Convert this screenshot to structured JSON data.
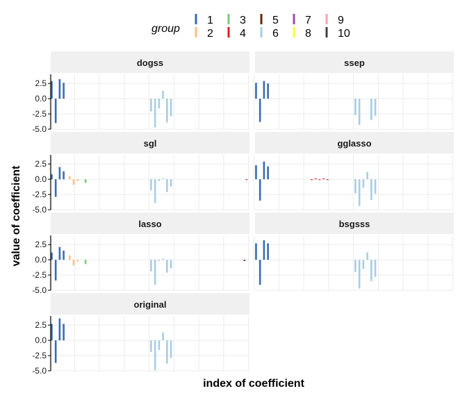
{
  "chart_data": {
    "type": "bar",
    "xlabel": "index of coefficient",
    "ylabel": "value of coefficient",
    "ylim": [
      -5,
      4
    ],
    "y_ticks": [
      2.5,
      0.0,
      -2.5,
      -5.0
    ],
    "y_tick_labels": [
      "2.5",
      "0.0",
      "-2.5",
      "-5.0"
    ],
    "x_range": [
      0.5,
      100.5
    ],
    "grid": true,
    "legend": {
      "title": "group",
      "placement": "top",
      "entries": [
        {
          "label": "1",
          "color": "#386CB0"
        },
        {
          "label": "2",
          "color": "#FDC086"
        },
        {
          "label": "3",
          "color": "#7FC97F"
        },
        {
          "label": "4",
          "color": "#E41A1C"
        },
        {
          "label": "5",
          "color": "#662506"
        },
        {
          "label": "6",
          "color": "#A6CEE3"
        },
        {
          "label": "7",
          "color": "#984EA3"
        },
        {
          "label": "8",
          "color": "#FFFF33"
        },
        {
          "label": "9",
          "color": "#F4A5A8"
        },
        {
          "label": "10",
          "color": "#404040"
        }
      ]
    },
    "panels": [
      {
        "name": "dogss",
        "bars": [
          {
            "x": 1,
            "y": 2.9,
            "group": "1"
          },
          {
            "x": 3,
            "y": -4.0,
            "group": "1"
          },
          {
            "x": 5,
            "y": 3.2,
            "group": "1"
          },
          {
            "x": 7,
            "y": 2.6,
            "group": "1"
          },
          {
            "x": 51,
            "y": -2.1,
            "group": "6"
          },
          {
            "x": 53,
            "y": -4.7,
            "group": "6"
          },
          {
            "x": 55,
            "y": -1.6,
            "group": "6"
          },
          {
            "x": 57,
            "y": 1.3,
            "group": "6"
          },
          {
            "x": 59,
            "y": -3.9,
            "group": "6"
          },
          {
            "x": 61,
            "y": -2.9,
            "group": "6"
          }
        ]
      },
      {
        "name": "ssep",
        "bars": [
          {
            "x": 1,
            "y": 2.6,
            "group": "1"
          },
          {
            "x": 3,
            "y": -3.8,
            "group": "1"
          },
          {
            "x": 5,
            "y": 2.9,
            "group": "1"
          },
          {
            "x": 7,
            "y": 2.5,
            "group": "1"
          },
          {
            "x": 51,
            "y": -2.7,
            "group": "6"
          },
          {
            "x": 53,
            "y": -4.3,
            "group": "6"
          },
          {
            "x": 59,
            "y": -3.5,
            "group": "6"
          },
          {
            "x": 61,
            "y": -2.8,
            "group": "6"
          }
        ]
      },
      {
        "name": "sgl",
        "bars": [
          {
            "x": 1,
            "y": 0.8,
            "group": "1"
          },
          {
            "x": 3,
            "y": -2.9,
            "group": "1"
          },
          {
            "x": 5,
            "y": 2.0,
            "group": "1"
          },
          {
            "x": 7,
            "y": 1.3,
            "group": "1"
          },
          {
            "x": 10,
            "y": 0.5,
            "group": "2"
          },
          {
            "x": 12,
            "y": -0.9,
            "group": "2"
          },
          {
            "x": 14,
            "y": -0.3,
            "group": "2"
          },
          {
            "x": 18,
            "y": -0.6,
            "group": "3"
          },
          {
            "x": 51,
            "y": -1.8,
            "group": "6"
          },
          {
            "x": 53,
            "y": -3.9,
            "group": "6"
          },
          {
            "x": 55,
            "y": -0.3,
            "group": "6"
          },
          {
            "x": 57,
            "y": 0.1,
            "group": "6"
          },
          {
            "x": 59,
            "y": -2.1,
            "group": "6"
          },
          {
            "x": 61,
            "y": -1.2,
            "group": "6"
          },
          {
            "x": 99,
            "y": -0.1,
            "group": "4"
          }
        ]
      },
      {
        "name": "gglasso",
        "bars": [
          {
            "x": 1,
            "y": 2.3,
            "group": "1"
          },
          {
            "x": 3,
            "y": -3.5,
            "group": "1"
          },
          {
            "x": 5,
            "y": 2.9,
            "group": "1"
          },
          {
            "x": 7,
            "y": 2.1,
            "group": "1"
          },
          {
            "x": 29,
            "y": -0.05,
            "group": "4"
          },
          {
            "x": 31,
            "y": 0.05,
            "group": "4"
          },
          {
            "x": 33,
            "y": -0.05,
            "group": "4"
          },
          {
            "x": 35,
            "y": 0.05,
            "group": "4"
          },
          {
            "x": 37,
            "y": -0.05,
            "group": "4"
          },
          {
            "x": 51,
            "y": -2.3,
            "group": "6"
          },
          {
            "x": 53,
            "y": -4.4,
            "group": "6"
          },
          {
            "x": 55,
            "y": -1.4,
            "group": "6"
          },
          {
            "x": 57,
            "y": 1.2,
            "group": "6"
          },
          {
            "x": 59,
            "y": -3.4,
            "group": "6"
          },
          {
            "x": 61,
            "y": -2.4,
            "group": "6"
          }
        ]
      },
      {
        "name": "lasso",
        "bars": [
          {
            "x": 1,
            "y": 1.2,
            "group": "1"
          },
          {
            "x": 3,
            "y": -3.4,
            "group": "1"
          },
          {
            "x": 5,
            "y": 2.1,
            "group": "1"
          },
          {
            "x": 7,
            "y": 1.5,
            "group": "1"
          },
          {
            "x": 10,
            "y": 0.7,
            "group": "2"
          },
          {
            "x": 12,
            "y": -0.9,
            "group": "2"
          },
          {
            "x": 14,
            "y": -0.3,
            "group": "2"
          },
          {
            "x": 18,
            "y": -0.7,
            "group": "3"
          },
          {
            "x": 51,
            "y": -1.9,
            "group": "6"
          },
          {
            "x": 53,
            "y": -4.1,
            "group": "6"
          },
          {
            "x": 55,
            "y": -0.2,
            "group": "6"
          },
          {
            "x": 57,
            "y": 0.2,
            "group": "6"
          },
          {
            "x": 59,
            "y": -2.1,
            "group": "6"
          },
          {
            "x": 61,
            "y": -1.4,
            "group": "6"
          },
          {
            "x": 98,
            "y": -0.2,
            "group": "10"
          }
        ]
      },
      {
        "name": "bsgsss",
        "bars": [
          {
            "x": 1,
            "y": 2.7,
            "group": "1"
          },
          {
            "x": 3,
            "y": -4.1,
            "group": "1"
          },
          {
            "x": 5,
            "y": 3.2,
            "group": "1"
          },
          {
            "x": 7,
            "y": 2.7,
            "group": "1"
          },
          {
            "x": 51,
            "y": -2.0,
            "group": "6"
          },
          {
            "x": 53,
            "y": -4.7,
            "group": "6"
          },
          {
            "x": 55,
            "y": -1.5,
            "group": "6"
          },
          {
            "x": 57,
            "y": 1.2,
            "group": "6"
          },
          {
            "x": 59,
            "y": -3.5,
            "group": "6"
          },
          {
            "x": 61,
            "y": -2.8,
            "group": "6"
          }
        ]
      },
      {
        "name": "original",
        "bars": [
          {
            "x": 1,
            "y": 2.7,
            "group": "1"
          },
          {
            "x": 3,
            "y": -3.7,
            "group": "1"
          },
          {
            "x": 5,
            "y": 3.6,
            "group": "1"
          },
          {
            "x": 7,
            "y": 2.7,
            "group": "1"
          },
          {
            "x": 51,
            "y": -1.9,
            "group": "6"
          },
          {
            "x": 53,
            "y": -4.9,
            "group": "6"
          },
          {
            "x": 55,
            "y": -1.6,
            "group": "6"
          },
          {
            "x": 57,
            "y": 1.3,
            "group": "6"
          },
          {
            "x": 59,
            "y": -3.8,
            "group": "6"
          },
          {
            "x": 61,
            "y": -2.9,
            "group": "6"
          }
        ]
      }
    ]
  }
}
